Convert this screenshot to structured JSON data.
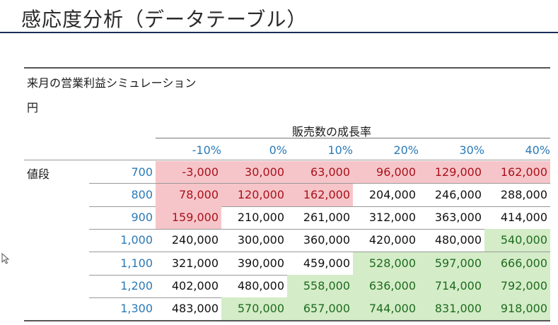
{
  "slide": {
    "title": "感応度分析（データテーブル）"
  },
  "table": {
    "title": "来月の営業利益シミュレーション",
    "unit": "円",
    "column_header": "販売数の成長率",
    "row_header": "値段",
    "growth_rates": [
      "-10%",
      "0%",
      "10%",
      "20%",
      "30%",
      "40%"
    ],
    "colors": {
      "header_blue": "#2a7ab8",
      "loss_fill": "#f6c5c9",
      "loss_text": "#a8121c",
      "gain_fill": "#d4ecc8",
      "gain_text": "#1e6b1e"
    },
    "rows": [
      {
        "price": "700",
        "values": [
          "-3,000",
          "30,000",
          "63,000",
          "96,000",
          "129,000",
          "162,000"
        ],
        "highlight": [
          "neg",
          "neg",
          "neg",
          "neg",
          "neg",
          "neg"
        ]
      },
      {
        "price": "800",
        "values": [
          "78,000",
          "120,000",
          "162,000",
          "204,000",
          "246,000",
          "288,000"
        ],
        "highlight": [
          "neg",
          "neg",
          "neg",
          "",
          "",
          ""
        ]
      },
      {
        "price": "900",
        "values": [
          "159,000",
          "210,000",
          "261,000",
          "312,000",
          "363,000",
          "414,000"
        ],
        "highlight": [
          "neg",
          "",
          "",
          "",
          "",
          ""
        ]
      },
      {
        "price": "1,000",
        "values": [
          "240,000",
          "300,000",
          "360,000",
          "420,000",
          "480,000",
          "540,000"
        ],
        "highlight": [
          "",
          "",
          "",
          "",
          "",
          "pos"
        ]
      },
      {
        "price": "1,100",
        "values": [
          "321,000",
          "390,000",
          "459,000",
          "528,000",
          "597,000",
          "666,000"
        ],
        "highlight": [
          "",
          "",
          "",
          "pos",
          "pos",
          "pos"
        ]
      },
      {
        "price": "1,200",
        "values": [
          "402,000",
          "480,000",
          "558,000",
          "636,000",
          "714,000",
          "792,000"
        ],
        "highlight": [
          "",
          "",
          "pos",
          "pos",
          "pos",
          "pos"
        ]
      },
      {
        "price": "1,300",
        "values": [
          "483,000",
          "570,000",
          "657,000",
          "744,000",
          "831,000",
          "918,000"
        ],
        "highlight": [
          "",
          "pos",
          "pos",
          "pos",
          "pos",
          "pos"
        ]
      }
    ]
  }
}
